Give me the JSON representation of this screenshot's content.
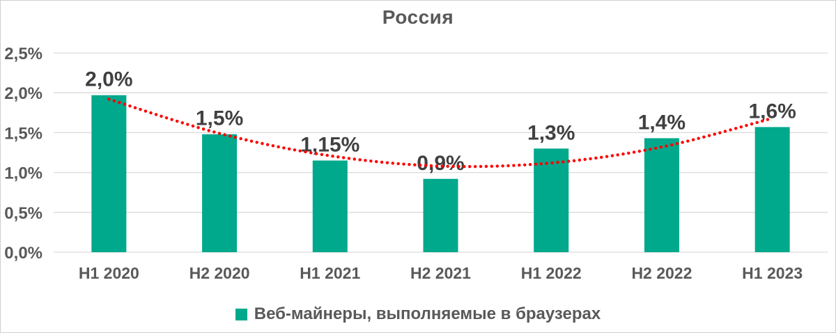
{
  "chart_data": {
    "type": "bar",
    "title": "Россия",
    "categories": [
      "H1 2020",
      "H2 2020",
      "H1 2021",
      "H2 2021",
      "H1 2022",
      "H2 2022",
      "H1 2023"
    ],
    "series": [
      {
        "name": "Веб-майнеры, выполняемые в браузерах",
        "values": [
          1.97,
          1.48,
          1.15,
          0.92,
          1.3,
          1.43,
          1.57
        ],
        "data_labels": [
          "2,0%",
          "1,5%",
          "1,15%",
          "0,9%",
          "1,3%",
          "1,4%",
          "1,6%"
        ],
        "color": "#00A88C"
      }
    ],
    "trendline": {
      "type": "polynomial",
      "style": "dotted",
      "color": "#FF0000",
      "values_at_categories": [
        1.92,
        1.49,
        1.21,
        1.08,
        1.12,
        1.32,
        1.68
      ]
    },
    "xlabel": "",
    "ylabel": "",
    "ylim": [
      0,
      2.5
    ],
    "ytick_labels": [
      "0,0%",
      "0,5%",
      "1,0%",
      "1,5%",
      "2,0%",
      "2,5%"
    ],
    "grid": true,
    "legend_position": "bottom",
    "colors": {
      "bar": "#00A88C",
      "trend": "#FF0000",
      "grid": "#D9D9D9",
      "axis_text": "#595959",
      "data_label": "#404040",
      "title_text": "#595959",
      "frame_border": "#D0CECE"
    }
  }
}
